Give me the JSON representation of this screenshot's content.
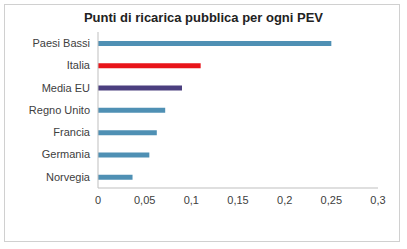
{
  "chart_data": {
    "type": "bar",
    "orientation": "horizontal",
    "title": "Punti di ricarica pubblica per ogni PEV",
    "categories": [
      "Paesi Bassi",
      "Italia",
      "Media EU",
      "Regno Unito",
      "Francia",
      "Germania",
      "Norvegia"
    ],
    "values": [
      0.25,
      0.11,
      0.09,
      0.072,
      0.063,
      0.055,
      0.037
    ],
    "colors": [
      "#4f90b4",
      "#e8141a",
      "#4b3f7f",
      "#4f90b4",
      "#4f90b4",
      "#4f90b4",
      "#4f90b4"
    ],
    "xlim": [
      0,
      0.3
    ],
    "xticks": [
      0,
      {
        "value": 0.05,
        "label": "0,05"
      },
      {
        "value": 0.1,
        "label": "0,1"
      },
      {
        "value": 0.15,
        "label": "0,15"
      },
      {
        "value": 0.2,
        "label": "0,2"
      },
      {
        "value": 0.25,
        "label": "0,25"
      },
      {
        "value": 0.3,
        "label": "0,3"
      }
    ],
    "grid": false
  }
}
